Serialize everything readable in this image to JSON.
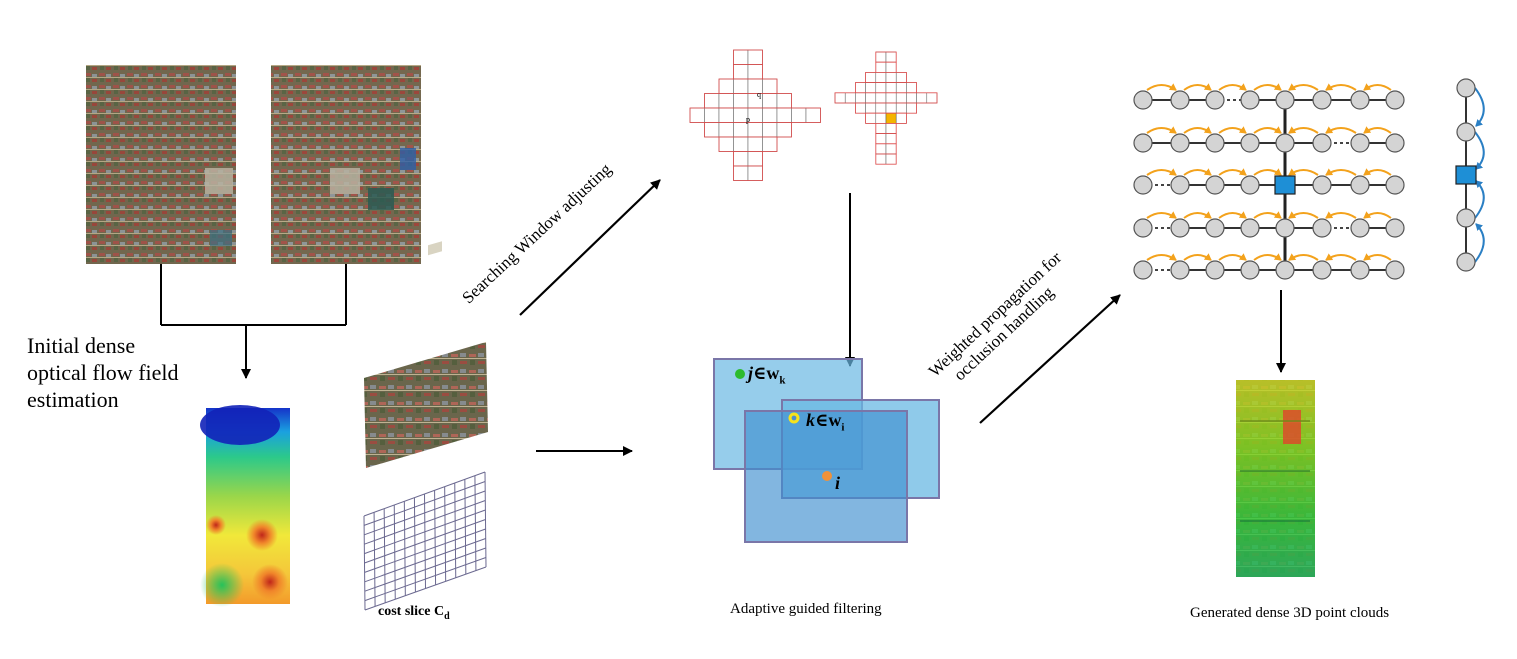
{
  "labels": {
    "flow_estimation": [
      "Initial dense",
      "optical flow field",
      "estimation"
    ],
    "searching_window": "Searching Window adjusting",
    "weighted_propagation": [
      "Weighted propagation for",
      "occlusion handling"
    ],
    "cost_slice": "cost slice C",
    "cost_slice_sub": "d",
    "adaptive_filtering": "Adaptive guided filtering",
    "point_clouds": "Generated dense 3D point clouds"
  },
  "window_labels": {
    "j": "j",
    "j_set": "∈w",
    "j_sub": "k",
    "k": "k",
    "k_set": "∈w",
    "k_sub": "i",
    "i": "i"
  },
  "grid_labels": {
    "q": "q",
    "p": "p"
  },
  "colors": {
    "window_fill": "#6ab8e3",
    "window_border": "#7a76a8",
    "node_fill": "#d4d4d4",
    "node_border": "#555555",
    "square_node": "#1e8fd6",
    "arrow_orange": "#f3a21c",
    "arrow_blue": "#2a7fc4",
    "grid_red": "#e04b4b",
    "highlight_cell": "#f4b400"
  },
  "icons": [
    "arrow-right-icon",
    "arrow-down-icon",
    "arrow-diagonal-icon"
  ]
}
